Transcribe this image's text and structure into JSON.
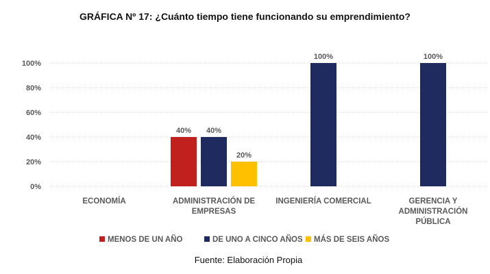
{
  "chart_data": {
    "type": "bar",
    "title": "GRÁFICA Nº 17: ¿Cuánto tiempo tiene funcionando su emprendimiento?",
    "categories": [
      "ECONOMÍA",
      "ADMINISTRACIÓN DE EMPRESAS",
      "INGENIERÍA COMERCIAL",
      "GERENCIA Y ADMINISTRACIÓN PÚBLICA"
    ],
    "category_lines": [
      [
        "ECONOMÍA"
      ],
      [
        "ADMINISTRACIÓN DE",
        "EMPRESAS"
      ],
      [
        "INGENIERÍA COMERCIAL"
      ],
      [
        "GERENCIA Y",
        "ADMINISTRACIÓN",
        "PÚBLICA"
      ]
    ],
    "series": [
      {
        "name": "MENOS DE UN AÑO",
        "color": "#c0201e",
        "values": [
          null,
          40,
          null,
          null
        ]
      },
      {
        "name": "DE UNO A CINCO AÑOS",
        "color": "#1f2a5e",
        "values": [
          null,
          40,
          100,
          100
        ]
      },
      {
        "name": "MÁS DE SEIS AÑOS",
        "color": "#ffc000",
        "values": [
          null,
          20,
          null,
          null
        ]
      }
    ],
    "yticks": [
      "0%",
      "20%",
      "40%",
      "60%",
      "80%",
      "100%"
    ],
    "ylim": [
      0,
      100
    ],
    "xlabel": "",
    "ylabel": "",
    "grid": true,
    "legend": "bottom"
  },
  "source": "Fuente: Elaboración Propia"
}
